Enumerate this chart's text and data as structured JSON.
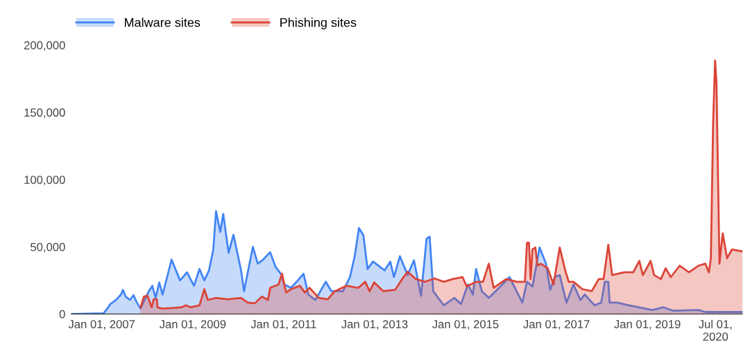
{
  "chart_data": {
    "type": "area",
    "legend": "top left",
    "grid": false,
    "ylim": [
      0,
      200000
    ],
    "yticks": [
      {
        "value": 0,
        "label": "0"
      },
      {
        "value": 50000,
        "label": "50,000"
      },
      {
        "value": 100000,
        "label": "100,000"
      },
      {
        "value": 150000,
        "label": "150,000"
      },
      {
        "value": 200000,
        "label": "200,000"
      }
    ],
    "xlim": [
      "2006-05-01",
      "2021-02-03"
    ],
    "xticks": [
      {
        "value": "2007-01-01",
        "label": "Jan 01, 2007"
      },
      {
        "value": "2009-01-01",
        "label": "Jan 01, 2009"
      },
      {
        "value": "2011-01-01",
        "label": "Jan 01, 2011"
      },
      {
        "value": "2013-01-01",
        "label": "Jan 01, 2013"
      },
      {
        "value": "2015-01-01",
        "label": "Jan 01, 2015"
      },
      {
        "value": "2017-01-01",
        "label": "Jan 01, 2017"
      },
      {
        "value": "2019-01-01",
        "label": "Jan 01, 2019"
      },
      {
        "value": "2020-07-01",
        "label": "Jul 01,\n2020"
      }
    ],
    "series": [
      {
        "name": "Malware sites",
        "color": "#4285f4",
        "x": [
          "2006-05-01",
          "2007-01-16",
          "2007-02-14",
          "2007-03-12",
          "2007-04-25",
          "2007-06-05",
          "2007-06-20",
          "2007-07-12",
          "2007-08-15",
          "2007-09-13",
          "2007-10-10",
          "2007-11-08",
          "2008-01-14",
          "2008-02-11",
          "2008-03-09",
          "2008-04-07",
          "2008-05-04",
          "2008-07-15",
          "2008-09-21",
          "2008-11-16",
          "2009-01-11",
          "2009-02-24",
          "2009-04-04",
          "2009-05-12",
          "2009-06-15",
          "2009-07-07",
          "2009-08-10",
          "2009-09-03",
          "2009-10-16",
          "2009-11-24",
          "2010-01-24",
          "2010-02-17",
          "2010-04-29",
          "2010-06-07",
          "2010-07-20",
          "2010-09-15",
          "2010-10-28",
          "2010-12-09",
          "2011-01-06",
          "2011-03-01",
          "2011-04-25",
          "2011-06-10",
          "2011-07-18",
          "2011-09-13",
          "2011-12-06",
          "2012-01-19",
          "2012-04-22",
          "2012-06-17",
          "2012-07-25",
          "2012-08-28",
          "2012-10-03",
          "2012-11-05",
          "2012-12-19",
          "2013-02-14",
          "2013-03-22",
          "2013-05-07",
          "2013-06-05",
          "2013-07-23",
          "2013-09-23",
          "2013-11-13",
          "2014-01-09",
          "2014-02-22",
          "2014-03-19",
          "2014-04-17",
          "2014-07-10",
          "2014-10-03",
          "2014-11-26",
          "2015-01-21",
          "2015-03-01",
          "2015-03-27",
          "2015-05-12",
          "2015-07-07",
          "2015-09-28",
          "2015-12-21",
          "2016-04-01",
          "2016-05-09",
          "2016-06-22",
          "2016-08-18",
          "2016-10-08",
          "2016-11-11",
          "2016-12-19",
          "2017-01-27",
          "2017-03-22",
          "2017-05-17",
          "2017-07-12",
          "2017-08-15",
          "2017-11-03",
          "2017-12-26",
          "2018-01-24",
          "2018-02-21",
          "2018-03-04",
          "2018-05-04",
          "2018-08-07",
          "2019-02-09",
          "2019-05-12",
          "2019-07-23",
          "2020-02-16",
          "2020-04-11",
          "2020-08-18",
          "2021-02-03"
        ],
        "values": [
          0,
          500,
          4000,
          7500,
          10500,
          14500,
          18000,
          13000,
          10500,
          14000,
          8500,
          4000,
          17000,
          21000,
          12000,
          23500,
          14500,
          40500,
          25000,
          31000,
          21000,
          33500,
          25000,
          32500,
          48000,
          76500,
          61000,
          74500,
          45500,
          59000,
          32500,
          17000,
          50000,
          37500,
          40500,
          46000,
          35000,
          30000,
          22000,
          19500,
          25000,
          30000,
          14500,
          10500,
          24000,
          17000,
          17000,
          27500,
          43000,
          64000,
          58500,
          33500,
          39000,
          35000,
          32500,
          39000,
          27500,
          43000,
          29000,
          40000,
          13500,
          56000,
          57500,
          17000,
          6500,
          12000,
          7500,
          22000,
          14500,
          33500,
          17000,
          12000,
          19500,
          27500,
          8500,
          24000,
          20500,
          49500,
          37500,
          18000,
          27500,
          29000,
          8500,
          22000,
          10500,
          14500,
          6500,
          8500,
          24000,
          24000,
          8500,
          8500,
          6500,
          3000,
          5000,
          2500,
          3000,
          1500,
          1500,
          1500
        ]
      },
      {
        "name": "Phishing sites",
        "color": "#db4437",
        "x": [
          "2007-11-08",
          "2007-12-06",
          "2008-01-04",
          "2008-02-06",
          "2008-02-22",
          "2008-03-19",
          "2008-03-24",
          "2008-05-04",
          "2008-10-03",
          "2008-11-06",
          "2008-12-14",
          "2009-02-24",
          "2009-04-04",
          "2009-05-02",
          "2009-07-07",
          "2009-10-05",
          "2010-01-24",
          "2010-03-19",
          "2010-05-15",
          "2010-07-10",
          "2010-08-28",
          "2010-09-15",
          "2010-11-21",
          "2010-12-19",
          "2011-01-21",
          "2011-03-01",
          "2011-05-12",
          "2011-06-20",
          "2011-07-28",
          "2011-10-11",
          "2011-12-21",
          "2012-02-16",
          "2012-05-20",
          "2012-08-23",
          "2012-10-18",
          "2012-11-21",
          "2012-12-29",
          "2013-03-11",
          "2013-06-15",
          "2013-08-10",
          "2013-09-23",
          "2013-11-29",
          "2014-02-11",
          "2014-04-27",
          "2014-07-10",
          "2014-09-21",
          "2014-12-08",
          "2015-01-11",
          "2015-03-27",
          "2015-05-22",
          "2015-07-07",
          "2015-08-15",
          "2015-11-24",
          "2016-02-17",
          "2016-04-22",
          "2016-05-09",
          "2016-05-25",
          "2016-06-07",
          "2016-06-22",
          "2016-07-15",
          "2016-08-02",
          "2016-08-28",
          "2016-10-23",
          "2016-12-08",
          "2017-01-27",
          "2017-03-12",
          "2017-04-09",
          "2017-05-17",
          "2017-07-28",
          "2017-10-11",
          "2017-12-06",
          "2018-01-14",
          "2018-02-21",
          "2018-03-24",
          "2018-06-28",
          "2018-09-10",
          "2018-10-28",
          "2018-11-26",
          "2019-01-27",
          "2019-02-24",
          "2019-04-19",
          "2019-05-28",
          "2019-07-08",
          "2019-09-18",
          "2019-12-01",
          "2020-02-16",
          "2020-04-11",
          "2020-05-09",
          "2020-05-25",
          "2020-06-12",
          "2020-06-28",
          "2020-07-09",
          "2020-08-02",
          "2020-08-28",
          "2020-10-02",
          "2020-11-10",
          "2021-02-03"
        ],
        "values": [
          5000,
          13000,
          13500,
          5000,
          11000,
          11000,
          5000,
          4000,
          5000,
          6500,
          5000,
          6500,
          18500,
          10500,
          12000,
          11000,
          12000,
          8500,
          8000,
          13000,
          10500,
          19500,
          22000,
          30000,
          16000,
          18500,
          21000,
          16000,
          19500,
          12000,
          11000,
          17000,
          21000,
          19500,
          24000,
          17000,
          23500,
          17000,
          18000,
          26000,
          31500,
          26000,
          24000,
          26500,
          24000,
          26000,
          27500,
          20500,
          24000,
          24000,
          37500,
          19500,
          26000,
          24000,
          24000,
          53000,
          53000,
          26000,
          48000,
          49500,
          36000,
          37500,
          34000,
          22000,
          49500,
          32500,
          24000,
          24000,
          18500,
          17000,
          26000,
          26000,
          51500,
          29000,
          31000,
          31000,
          39500,
          29000,
          39500,
          29000,
          26000,
          34000,
          27500,
          36000,
          31000,
          36000,
          37500,
          31000,
          41500,
          142500,
          188500,
          172000,
          37500,
          60000,
          41500,
          48000,
          46500
        ]
      }
    ]
  }
}
